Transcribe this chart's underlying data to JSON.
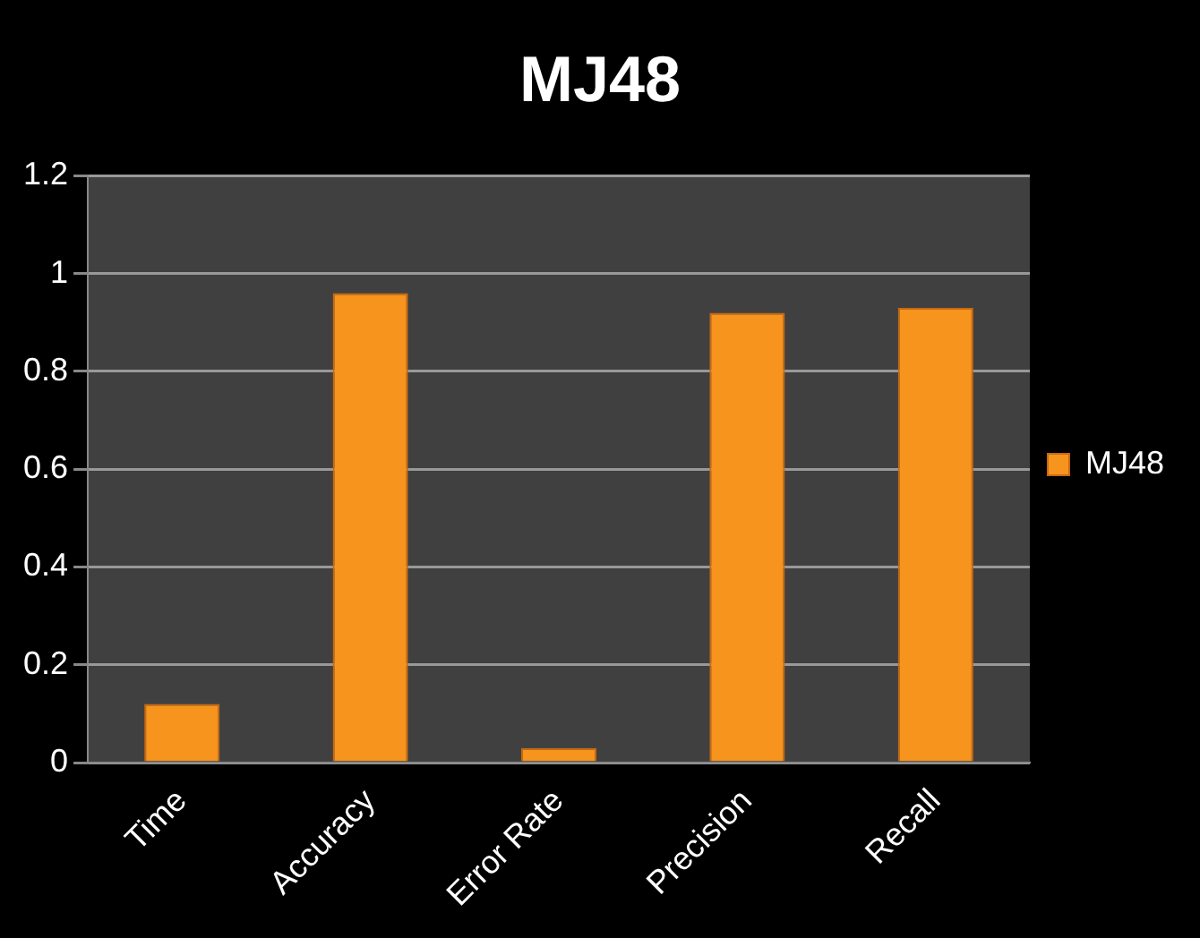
{
  "chart_data": {
    "type": "bar",
    "title": "MJ48",
    "categories": [
      "Time",
      "Accuracy",
      "Error Rate",
      "Precision",
      "Recall"
    ],
    "series": [
      {
        "name": "MJ48",
        "color": "#f7941d",
        "values": [
          0.12,
          0.96,
          0.03,
          0.92,
          0.93
        ]
      }
    ],
    "ylim": [
      0,
      1.2
    ],
    "yticks": [
      0,
      0.2,
      0.4,
      0.6,
      0.8,
      1,
      1.2
    ],
    "grid": "y",
    "legend": "right"
  }
}
